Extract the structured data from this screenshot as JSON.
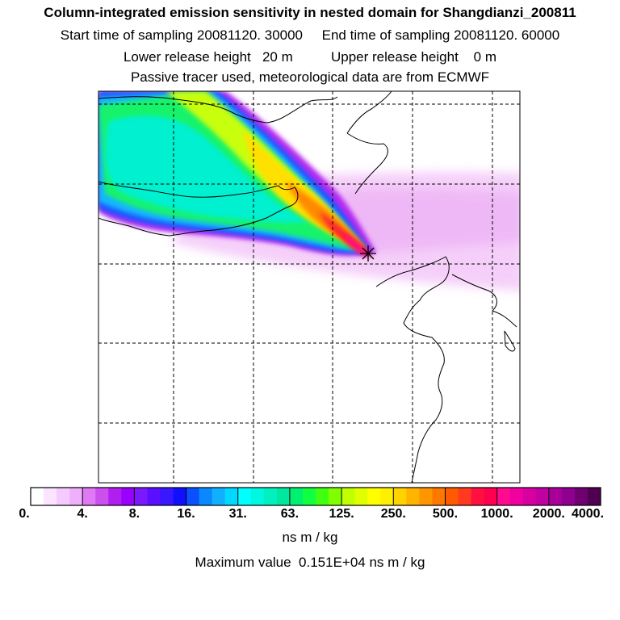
{
  "header": {
    "title": "Column-integrated emission sensitivity in nested domain for Shangdianzi_200811",
    "sampling_line": "Start time of sampling 20081120. 30000     End time of sampling 20081120. 60000",
    "release_line": "Lower release height   20 m          Upper release height    0 m",
    "tracer_line": "Passive tracer used, meteorological data are from ECMWF"
  },
  "chart_data": {
    "type": "heatmap",
    "title": "Column-integrated emission sensitivity in nested domain for Shangdianzi_200811",
    "station": "Shangdianzi",
    "grid": true,
    "plume": {
      "direction": "from northwest toward the receptor",
      "levels": [
        {
          "name": "outer-faint",
          "band": "0.-4."
        },
        {
          "name": "edge-purple",
          "band": "4.-8."
        },
        {
          "name": "blue",
          "band": "8.-31."
        },
        {
          "name": "cyan-core",
          "band": "31.-63."
        },
        {
          "name": "green",
          "band": "63.-125."
        },
        {
          "name": "yellow",
          "band": "125.-500."
        },
        {
          "name": "red-near-receptor",
          "band": "500.-2000."
        }
      ]
    },
    "colorbar": {
      "tick_labels": [
        "0.",
        "4.",
        "8.",
        "16.",
        "31.",
        "63.",
        "125.",
        "250.",
        "500.",
        "1000.",
        "2000.",
        "4000."
      ],
      "colors": [
        "#ffffff",
        "#fbe4ff",
        "#f5caff",
        "#eeb0fb",
        "#df7af4",
        "#cc50ee",
        "#b01ff0",
        "#9a00ff",
        "#7c18ff",
        "#5a10ff",
        "#3818ff",
        "#1010ff",
        "#0a50ff",
        "#0a88ff",
        "#10b0ff",
        "#00d8ff",
        "#00ffff",
        "#00f8e0",
        "#00f0c0",
        "#00e8a0",
        "#00f070",
        "#10ff40",
        "#40ff10",
        "#80ff00",
        "#c0ff00",
        "#e0ff00",
        "#ffff00",
        "#fff000",
        "#ffd200",
        "#ffb400",
        "#ff9600",
        "#ff7800",
        "#ff5a00",
        "#ff3a20",
        "#ff1040",
        "#ff0050",
        "#ff0a90",
        "#f000a0",
        "#d800a0",
        "#c000a0",
        "#a80098",
        "#900090",
        "#700070",
        "#500050"
      ],
      "units": "ns m / kg"
    },
    "max_value_text": "Maximum value  0.151E+04 ns m / kg"
  }
}
